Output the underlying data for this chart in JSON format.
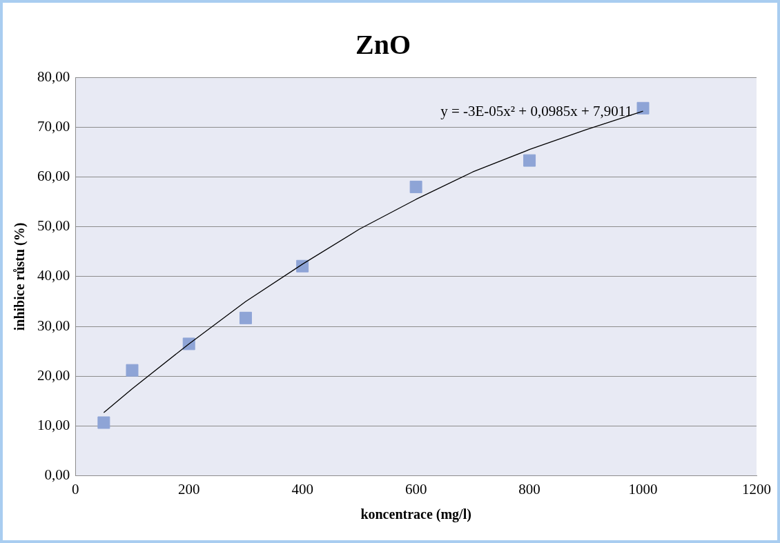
{
  "chart_data": {
    "type": "scatter",
    "title": "ZnO",
    "xlabel": "koncentrace (mg/l)",
    "ylabel": "inhibice růstu (%)",
    "series": [
      {
        "color": "#8ea4d6",
        "marker": "square",
        "x": [
          50,
          100,
          200,
          300,
          400,
          600,
          800,
          1000
        ],
        "values": [
          10.7,
          21.2,
          26.5,
          31.7,
          42.1,
          58.0,
          63.3,
          73.8
        ]
      },
      {
        "type": "line",
        "color": "#000000",
        "marker": "none",
        "line_style": "solid",
        "x": [
          50,
          100,
          200,
          300,
          400,
          500,
          600,
          700,
          800,
          900,
          1000
        ],
        "values": [
          12.7,
          17.5,
          26.5,
          35.0,
          42.5,
          49.5,
          55.5,
          61.0,
          65.5,
          69.5,
          73.2
        ]
      }
    ],
    "xlim": [
      0,
      1200
    ],
    "xticks": [
      0,
      200,
      400,
      600,
      800,
      1000,
      1200
    ],
    "ylim": [
      0,
      80
    ],
    "yticks": [
      {
        "value": 0,
        "label": "0,00"
      },
      {
        "value": 10,
        "label": "10,00"
      },
      {
        "value": 20,
        "label": "20,00"
      },
      {
        "value": 30,
        "label": "30,00"
      },
      {
        "value": 40,
        "label": "40,00"
      },
      {
        "value": 50,
        "label": "50,00"
      },
      {
        "value": 60,
        "label": "60,00"
      },
      {
        "value": 70,
        "label": "70,00"
      },
      {
        "value": 80,
        "label": "80,00"
      }
    ],
    "grid": "y",
    "legend": false,
    "annotations": [
      "y = -3E-05x² + 0,0985x + 7,9011"
    ]
  }
}
